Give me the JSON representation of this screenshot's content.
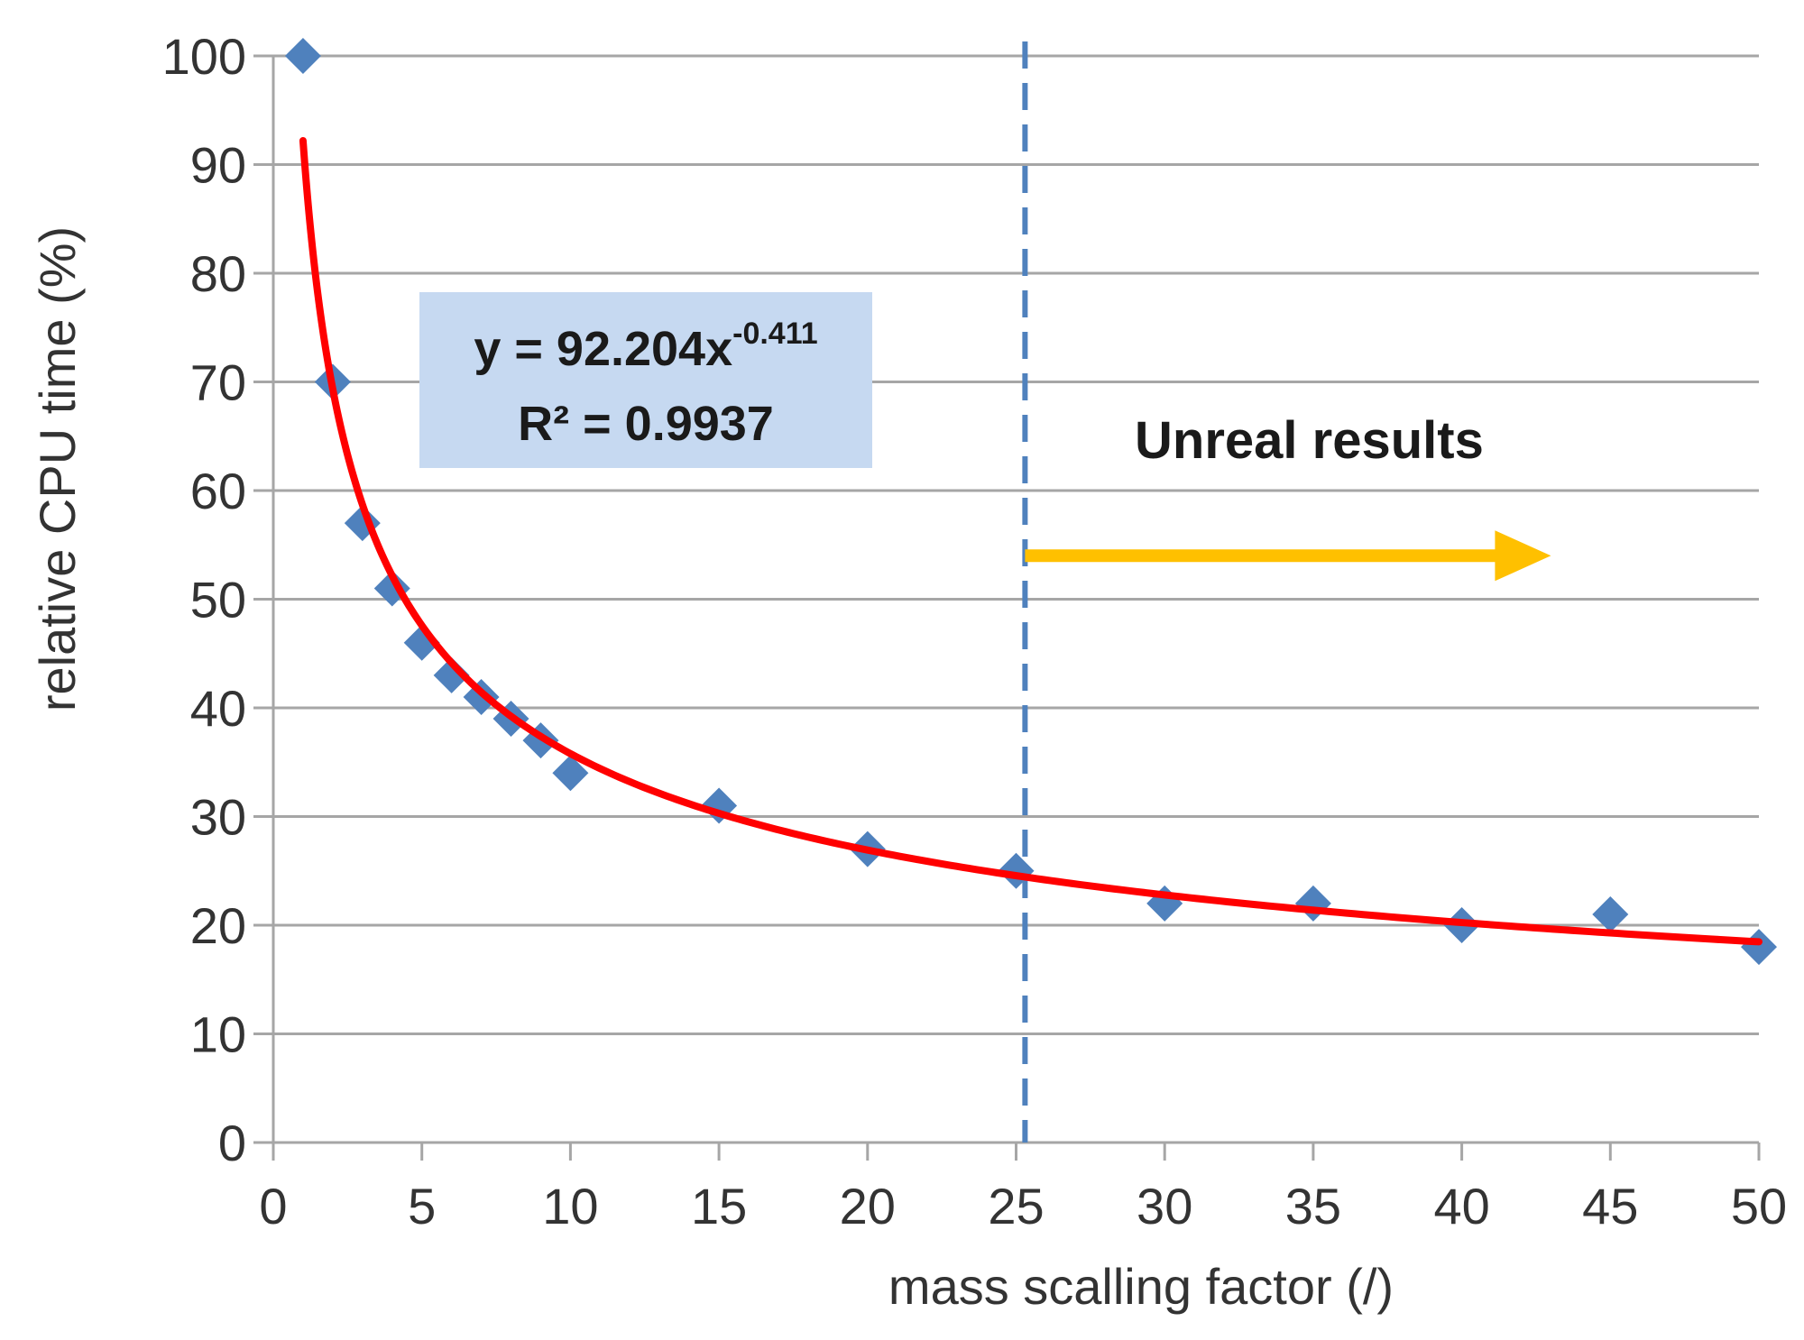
{
  "chart_data": {
    "type": "scatter",
    "title": "",
    "xlabel": "mass scalling factor (/)",
    "ylabel": "relative CPU time (%)",
    "xlim": [
      0,
      50
    ],
    "ylim": [
      0,
      100
    ],
    "xticks": [
      0,
      5,
      10,
      15,
      20,
      25,
      30,
      35,
      40,
      45,
      50
    ],
    "yticks": [
      0,
      10,
      20,
      30,
      40,
      50,
      60,
      70,
      80,
      90,
      100
    ],
    "grid": "horizontal",
    "series": [
      {
        "marker": "diamond",
        "color": "#4f81bd",
        "points": [
          {
            "x": 1,
            "y": 100
          },
          {
            "x": 2,
            "y": 70
          },
          {
            "x": 3,
            "y": 57
          },
          {
            "x": 4,
            "y": 51
          },
          {
            "x": 5,
            "y": 46
          },
          {
            "x": 6,
            "y": 43
          },
          {
            "x": 7,
            "y": 41
          },
          {
            "x": 8,
            "y": 39
          },
          {
            "x": 9,
            "y": 37
          },
          {
            "x": 10,
            "y": 34
          },
          {
            "x": 15,
            "y": 31
          },
          {
            "x": 20,
            "y": 27
          },
          {
            "x": 25,
            "y": 25
          },
          {
            "x": 30,
            "y": 22
          },
          {
            "x": 35,
            "y": 22
          },
          {
            "x": 40,
            "y": 20
          },
          {
            "x": 45,
            "y": 21
          },
          {
            "x": 50,
            "y": 18
          }
        ]
      }
    ],
    "trendline": {
      "type": "power",
      "coefficient": 92.204,
      "exponent": -0.411,
      "x_from": 1,
      "x_to": 50,
      "color": "#ff0000"
    },
    "equation_box": {
      "equation_base": "y = 92.204x",
      "equation_exponent": "-0.411",
      "r2_label": "R² = 0.9937",
      "background": "#c6d9f1"
    },
    "threshold_line": {
      "x": 25.3,
      "style": "dashed",
      "color": "#4f81bd"
    },
    "region_annotation": {
      "text": "Unreal results",
      "arrow_color": "#ffc000",
      "arrow_from_x": 25.3,
      "arrow_to_x": 43,
      "arrow_y": 54
    }
  }
}
